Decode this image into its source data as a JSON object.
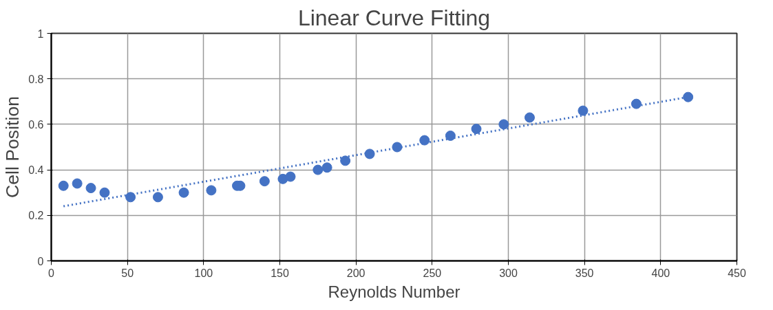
{
  "chart_data": {
    "type": "scatter",
    "title": "Linear Curve Fitting",
    "xlabel": "Reynolds Number",
    "ylabel": "Cell Position",
    "series": [
      {
        "color": "#4472c4",
        "marker": "circle",
        "x": [
          8,
          17,
          26,
          35,
          52,
          70,
          87,
          105,
          122,
          124,
          140,
          152,
          157,
          175,
          181,
          193,
          209,
          227,
          245,
          262,
          279,
          297,
          314,
          349,
          384,
          418
        ],
        "values": [
          0.33,
          0.34,
          0.32,
          0.3,
          0.28,
          0.28,
          0.3,
          0.31,
          0.33,
          0.33,
          0.35,
          0.36,
          0.37,
          0.4,
          0.41,
          0.44,
          0.47,
          0.5,
          0.53,
          0.55,
          0.58,
          0.6,
          0.63,
          0.66,
          0.69,
          0.72
        ]
      },
      {
        "type": "line",
        "color": "#4472c4",
        "line_style": "dotted",
        "x": [
          8,
          418
        ],
        "values": [
          0.24,
          0.72
        ]
      }
    ],
    "xlim": [
      0,
      450
    ],
    "xticks": [
      0,
      50,
      100,
      150,
      200,
      250,
      300,
      350,
      400,
      450
    ],
    "ylim": [
      0,
      1
    ],
    "yticks": [
      0,
      0.2,
      0.4,
      0.6,
      0.8,
      1
    ],
    "grid": true
  }
}
